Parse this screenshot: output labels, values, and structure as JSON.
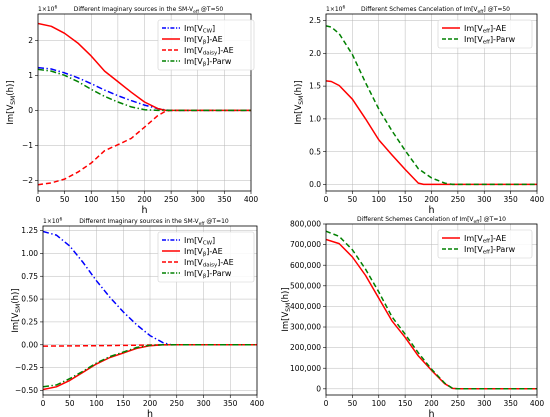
{
  "chart_data": [
    {
      "type": "line",
      "title": "Different Imaginary sources in the SM-V_eff @T=50",
      "title_main": "Different Imaginary sources in the SM-V",
      "title_sub": "eff",
      "title_tail": " @T=50",
      "multiplier": "1e6",
      "xlabel": "h",
      "ylabel": "Im[V_SM(h)]",
      "xlim": [
        0,
        400
      ],
      "ylim": [
        -2.3,
        2.75
      ],
      "xticks": [
        0,
        50,
        100,
        150,
        200,
        250,
        300,
        350,
        400
      ],
      "yticks": [
        -2,
        -1,
        0,
        1,
        2
      ],
      "ytick_labels": [
        "−2",
        "−1",
        "0",
        "1",
        "2"
      ],
      "grid": true,
      "legend_position": "top-right",
      "series": [
        {
          "name": "Im[V_CW]",
          "legend_main": "Im[V",
          "legend_sub": "CW",
          "legend_tail": "]",
          "color": "#0000ff",
          "dash": "dashdot",
          "x": [
            0,
            25,
            50,
            75,
            100,
            125,
            150,
            175,
            200,
            225,
            240,
            250,
            300,
            350,
            400
          ],
          "y": [
            1.22,
            1.18,
            1.07,
            0.93,
            0.76,
            0.58,
            0.42,
            0.28,
            0.15,
            0.05,
            0.01,
            0.0,
            0.0,
            0.0,
            0.0
          ]
        },
        {
          "name": "Im[V_β]-AE",
          "legend_main": "Im[V",
          "legend_sub": "β",
          "legend_tail": "]-AE",
          "color": "#ff0000",
          "dash": "solid",
          "x": [
            0,
            25,
            50,
            75,
            100,
            125,
            150,
            175,
            200,
            225,
            240,
            250,
            300,
            350,
            400
          ],
          "y": [
            2.48,
            2.4,
            2.2,
            1.92,
            1.55,
            1.12,
            0.82,
            0.52,
            0.24,
            0.05,
            0.0,
            0.0,
            0.0,
            0.0,
            0.0
          ]
        },
        {
          "name": "Im[V_daisy]-AE",
          "legend_main": "Im[V",
          "legend_sub": "daisy",
          "legend_tail": "]-AE",
          "color": "#ff0000",
          "dash": "dashed",
          "x": [
            0,
            25,
            50,
            75,
            100,
            125,
            150,
            175,
            200,
            225,
            240,
            250,
            300,
            350,
            400
          ],
          "y": [
            -2.12,
            -2.07,
            -1.96,
            -1.76,
            -1.5,
            -1.15,
            -0.98,
            -0.8,
            -0.48,
            -0.15,
            -0.02,
            0.0,
            0.0,
            0.0,
            0.0
          ]
        },
        {
          "name": "Im[V_β]-Parw",
          "legend_main": "Im[V",
          "legend_sub": "β",
          "legend_tail": "]-Parw",
          "color": "#008000",
          "dash": "dashdot",
          "x": [
            0,
            25,
            50,
            75,
            100,
            125,
            150,
            175,
            200,
            225,
            240,
            250,
            300,
            350,
            400
          ],
          "y": [
            1.17,
            1.12,
            1.0,
            0.82,
            0.6,
            0.4,
            0.24,
            0.1,
            0.02,
            0.0,
            0.0,
            0.0,
            0.0,
            0.0,
            0.0
          ]
        }
      ]
    },
    {
      "type": "line",
      "title": "Different Schemes Cancelation of Im[V_eff] @T=50",
      "title_main": "Different Schemes Cancelation of Im[V",
      "title_sub": "eff",
      "title_tail": "] @T=50",
      "multiplier": "1e6",
      "xlabel": "h",
      "ylabel": "Im[V_SM(h)]",
      "xlim": [
        0,
        400
      ],
      "ylim": [
        -0.1,
        2.6
      ],
      "xticks": [
        0,
        50,
        100,
        150,
        200,
        250,
        300,
        350,
        400
      ],
      "yticks": [
        0.0,
        0.5,
        1.0,
        1.5,
        2.0,
        2.5
      ],
      "ytick_labels": [
        "0.0",
        "0.5",
        "1.0",
        "1.5",
        "2.0",
        "2.5"
      ],
      "grid": true,
      "legend_position": "top-right",
      "series": [
        {
          "name": "Im[V_eff]-AE",
          "legend_main": "Im[V",
          "legend_sub": "eff",
          "legend_tail": "]-AE",
          "color": "#ff0000",
          "dash": "solid",
          "x": [
            0,
            10,
            25,
            50,
            75,
            100,
            125,
            150,
            175,
            185,
            200,
            250,
            300,
            350,
            400
          ],
          "y": [
            1.58,
            1.57,
            1.51,
            1.3,
            1.0,
            0.68,
            0.45,
            0.23,
            0.02,
            0.0,
            0.0,
            0.0,
            0.0,
            0.0,
            0.0
          ]
        },
        {
          "name": "Im[V_eff]-Parw",
          "legend_main": "Im[V",
          "legend_sub": "eff",
          "legend_tail": "]-Parw",
          "color": "#008000",
          "dash": "dashed",
          "x": [
            0,
            10,
            25,
            50,
            75,
            100,
            125,
            150,
            175,
            200,
            225,
            240,
            300,
            350,
            400
          ],
          "y": [
            2.42,
            2.4,
            2.3,
            1.98,
            1.55,
            1.15,
            0.82,
            0.52,
            0.24,
            0.1,
            0.02,
            0.0,
            0.0,
            0.0,
            0.0
          ]
        }
      ]
    },
    {
      "type": "line",
      "title": "Different Imaginary sources in the SM-V_eff @T=10",
      "title_main": "Different Imaginary sources in the SM-V",
      "title_sub": "eff",
      "title_tail": " @T=10",
      "multiplier": "1e6",
      "xlabel": "h",
      "ylabel": "Im[V_SM(h)]",
      "xlim": [
        0,
        400
      ],
      "ylim": [
        -0.55,
        1.3
      ],
      "xticks": [
        0,
        50,
        100,
        150,
        200,
        250,
        300,
        350,
        400
      ],
      "yticks": [
        -0.5,
        -0.25,
        0.0,
        0.25,
        0.5,
        0.75,
        1.0,
        1.25
      ],
      "ytick_labels": [
        "−0.50",
        "−0.25",
        "0.00",
        "0.25",
        "0.50",
        "0.75",
        "1.00",
        "1.25"
      ],
      "grid": true,
      "legend_position": "top-right",
      "series": [
        {
          "name": "Im[V_CW]",
          "legend_main": "Im[V",
          "legend_sub": "CW",
          "legend_tail": "]",
          "color": "#0000ff",
          "dash": "dashdot",
          "x": [
            0,
            25,
            50,
            75,
            100,
            125,
            150,
            175,
            200,
            225,
            240,
            250,
            300,
            350,
            400
          ],
          "y": [
            1.24,
            1.2,
            1.08,
            0.9,
            0.7,
            0.52,
            0.36,
            0.22,
            0.1,
            0.02,
            0.0,
            0.0,
            0.0,
            0.0,
            0.0
          ]
        },
        {
          "name": "Im[V_β]-AE",
          "legend_main": "Im[V",
          "legend_sub": "β",
          "legend_tail": "]-AE",
          "color": "#ff0000",
          "dash": "solid",
          "x": [
            0,
            25,
            50,
            75,
            100,
            125,
            150,
            175,
            200,
            225,
            250,
            300,
            350,
            400
          ],
          "y": [
            -0.49,
            -0.46,
            -0.39,
            -0.3,
            -0.21,
            -0.14,
            -0.09,
            -0.04,
            -0.01,
            0.0,
            0.0,
            0.0,
            0.0,
            0.0
          ]
        },
        {
          "name": "Im[V_daisy]-AE",
          "legend_main": "Im[V",
          "legend_sub": "daisy",
          "legend_tail": "]-AE",
          "color": "#ff0000",
          "dash": "dashed",
          "x": [
            0,
            50,
            100,
            150,
            200,
            250,
            300,
            350,
            400
          ],
          "y": [
            -0.015,
            -0.013,
            -0.01,
            -0.007,
            -0.003,
            0.0,
            0.0,
            0.0,
            0.0
          ]
        },
        {
          "name": "Im[V_β]-Parw",
          "legend_main": "Im[V",
          "legend_sub": "β",
          "legend_tail": "]-Parw",
          "color": "#008000",
          "dash": "dashdot",
          "x": [
            0,
            25,
            50,
            75,
            100,
            125,
            150,
            175,
            200,
            225,
            250,
            300,
            350,
            400
          ],
          "y": [
            -0.46,
            -0.44,
            -0.37,
            -0.29,
            -0.2,
            -0.13,
            -0.08,
            -0.03,
            -0.005,
            0.0,
            0.0,
            0.0,
            0.0,
            0.0
          ]
        }
      ]
    },
    {
      "type": "line",
      "title": "Different Schemes Cancelation of Im[V_eff] @T=10",
      "title_main": "Different Schemes Cancelation of Im[V",
      "title_sub": "eff",
      "title_tail": "] @T=10",
      "multiplier": "",
      "xlabel": "h",
      "ylabel": "Im[V_SM(h)]",
      "xlim": [
        0,
        400
      ],
      "ylim": [
        -30000,
        800000
      ],
      "xticks": [
        0,
        50,
        100,
        150,
        200,
        250,
        300,
        350,
        400
      ],
      "yticks": [
        0,
        100000,
        200000,
        300000,
        400000,
        500000,
        600000,
        700000,
        800000
      ],
      "ytick_labels": [
        "0",
        "100,000",
        "200,000",
        "300,000",
        "400,000",
        "500,000",
        "600,000",
        "700,000",
        "800,000"
      ],
      "grid": true,
      "legend_position": "top-right",
      "series": [
        {
          "name": "Im[V_eff]-AE",
          "legend_main": "Im[V",
          "legend_sub": "eff",
          "legend_tail": "]-AE",
          "color": "#ff0000",
          "dash": "solid",
          "x": [
            0,
            25,
            50,
            75,
            100,
            125,
            150,
            175,
            200,
            225,
            240,
            250,
            300,
            350,
            400
          ],
          "y": [
            725000,
            705000,
            640000,
            550000,
            440000,
            330000,
            250000,
            160000,
            90000,
            25000,
            2000,
            0,
            0,
            0,
            0
          ]
        },
        {
          "name": "Im[V_eff]-Parw",
          "legend_main": "Im[V",
          "legend_sub": "eff",
          "legend_tail": "]-Parw",
          "color": "#008000",
          "dash": "dashed",
          "x": [
            0,
            25,
            50,
            75,
            100,
            125,
            150,
            175,
            200,
            225,
            240,
            250,
            300,
            350,
            400
          ],
          "y": [
            765000,
            740000,
            675000,
            580000,
            470000,
            350000,
            265000,
            175000,
            95000,
            28000,
            2000,
            0,
            0,
            0,
            0
          ]
        }
      ]
    }
  ]
}
